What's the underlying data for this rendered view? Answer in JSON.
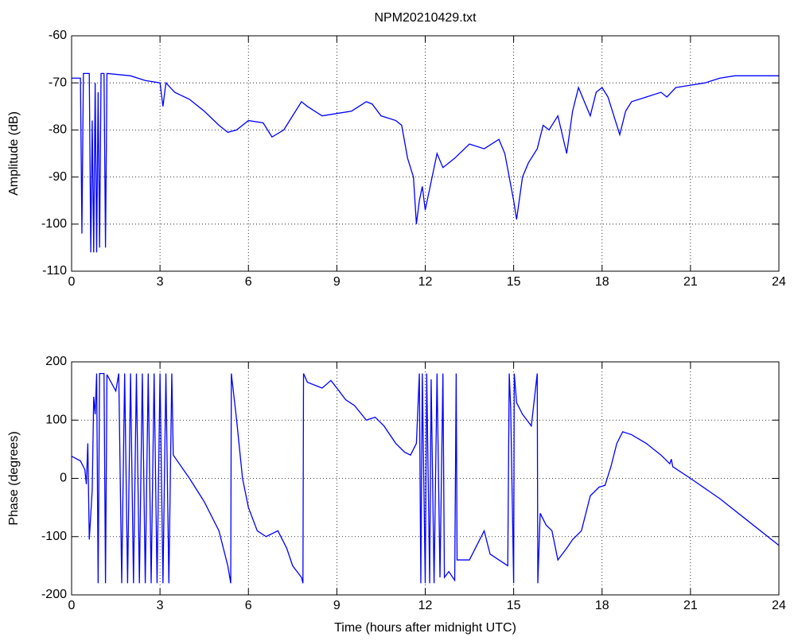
{
  "chart_data": [
    {
      "type": "line",
      "title": "NPM20210429.txt",
      "y_label": "Amplitude (dB)",
      "color": "#0000ff",
      "grid": true,
      "xlim": [
        0,
        24
      ],
      "xticks": [
        0,
        3,
        6,
        9,
        12,
        15,
        18,
        21,
        24
      ],
      "ylim": [
        -110,
        -60
      ],
      "yticks": [
        -110,
        -100,
        -90,
        -80,
        -70,
        -60
      ],
      "x": [
        0,
        0.3,
        0.35,
        0.4,
        0.6,
        0.65,
        0.7,
        0.75,
        0.8,
        0.85,
        0.9,
        0.95,
        1.0,
        1.1,
        1.15,
        1.2,
        2,
        2.5,
        3,
        3.1,
        3.2,
        3.5,
        4,
        4.5,
        5,
        5.3,
        5.6,
        6,
        6.5,
        6.8,
        7.2,
        7.5,
        7.8,
        8,
        8.5,
        9,
        9.5,
        10,
        10.2,
        10.5,
        11,
        11.2,
        11.4,
        11.6,
        11.7,
        11.8,
        11.9,
        12,
        12.1,
        12.2,
        12.4,
        12.6,
        13,
        13.5,
        14,
        14.5,
        14.7,
        15,
        15.1,
        15.3,
        15.5,
        15.8,
        16,
        16.2,
        16.4,
        16.5,
        16.8,
        17,
        17.2,
        17.4,
        17.6,
        17.8,
        18,
        18.2,
        18.5,
        18.6,
        18.8,
        19,
        19.5,
        20,
        20.2,
        20.5,
        21,
        21.5,
        22,
        22.5,
        23,
        23.5,
        24
      ],
      "values": [
        -69,
        -69,
        -102,
        -68,
        -68,
        -106,
        -78,
        -106,
        -70,
        -106,
        -72,
        -105,
        -68,
        -68,
        -105,
        -68,
        -68.5,
        -69.5,
        -70,
        -75,
        -70,
        -72,
        -73.5,
        -76,
        -79,
        -80.5,
        -80,
        -78,
        -78.5,
        -81.5,
        -80,
        -77,
        -74,
        -75,
        -77,
        -76.5,
        -76,
        -74,
        -74.5,
        -77,
        -78,
        -79,
        -86,
        -90,
        -100,
        -95,
        -92,
        -97,
        -94,
        -91,
        -85,
        -88,
        -86,
        -83,
        -84,
        -82,
        -85,
        -95,
        -99,
        -90,
        -87,
        -84,
        -79,
        -80,
        -78,
        -77,
        -85,
        -76,
        -71,
        -74,
        -77,
        -72,
        -71,
        -73,
        -79,
        -81,
        -76,
        -74,
        -73,
        -72,
        -73,
        -71,
        -70.5,
        -70,
        -69,
        -68.5,
        -68.5,
        -68.5,
        -68.5
      ]
    },
    {
      "type": "line",
      "y_label": "Phase (degrees)",
      "x_label": "Time (hours after midnight UTC)",
      "color": "#0000ff",
      "grid": true,
      "xlim": [
        0,
        24
      ],
      "xticks": [
        0,
        3,
        6,
        9,
        12,
        15,
        18,
        21,
        24
      ],
      "ylim": [
        -200,
        200
      ],
      "yticks": [
        -200,
        -100,
        0,
        100,
        200
      ],
      "x": [
        0,
        0.3,
        0.45,
        0.5,
        0.55,
        0.6,
        0.7,
        0.75,
        0.8,
        0.85,
        0.9,
        0.95,
        1.1,
        1.15,
        1.2,
        1.5,
        1.6,
        1.7,
        1.8,
        1.9,
        2.0,
        2.1,
        2.2,
        2.3,
        2.4,
        2.5,
        2.6,
        2.7,
        2.8,
        2.9,
        3.0,
        3.1,
        3.2,
        3.3,
        3.4,
        3.45,
        4,
        4.5,
        5,
        5.3,
        5.4,
        5.42,
        5.6,
        5.8,
        6,
        6.3,
        6.6,
        7,
        7.3,
        7.5,
        7.8,
        7.85,
        7.87,
        8,
        8.5,
        8.8,
        9,
        9.3,
        9.6,
        10,
        10.3,
        10.6,
        11,
        11.3,
        11.5,
        11.7,
        11.8,
        11.85,
        11.9,
        12,
        12.05,
        12.15,
        12.2,
        12.3,
        12.4,
        12.5,
        12.6,
        12.65,
        12.8,
        13,
        13.05,
        13.08,
        13.5,
        13.8,
        14,
        14.2,
        14.5,
        14.8,
        14.85,
        14.9,
        15,
        15.02,
        15.1,
        15.3,
        15.6,
        15.8,
        15.82,
        15.9,
        16.1,
        16.3,
        16.5,
        16.8,
        17,
        17.3,
        17.6,
        17.9,
        18.1,
        18.3,
        18.5,
        18.7,
        19,
        19.5,
        20,
        20.3,
        20.35,
        20.4,
        21,
        22,
        23,
        24
      ],
      "values": [
        38,
        30,
        15,
        -10,
        60,
        -105,
        -20,
        140,
        110,
        180,
        -180,
        180,
        180,
        -180,
        178,
        150,
        180,
        -180,
        180,
        -180,
        180,
        -180,
        180,
        -180,
        180,
        -180,
        180,
        -180,
        180,
        -180,
        180,
        -180,
        180,
        -180,
        180,
        40,
        0,
        -40,
        -90,
        -150,
        -180,
        180,
        100,
        0,
        -50,
        -90,
        -100,
        -90,
        -120,
        -150,
        -170,
        -180,
        180,
        165,
        155,
        168,
        155,
        135,
        125,
        100,
        105,
        90,
        60,
        45,
        40,
        60,
        180,
        -180,
        180,
        -180,
        180,
        -180,
        170,
        -180,
        180,
        -170,
        180,
        -170,
        -160,
        -175,
        180,
        -140,
        -140,
        -110,
        -90,
        -130,
        -140,
        -150,
        180,
        120,
        -180,
        180,
        130,
        110,
        90,
        180,
        -180,
        -60,
        -80,
        -90,
        -140,
        -120,
        -105,
        -90,
        -30,
        -15,
        -12,
        20,
        60,
        80,
        75,
        60,
        40,
        25,
        33,
        20,
        0,
        -35,
        -75,
        -115
      ]
    }
  ]
}
